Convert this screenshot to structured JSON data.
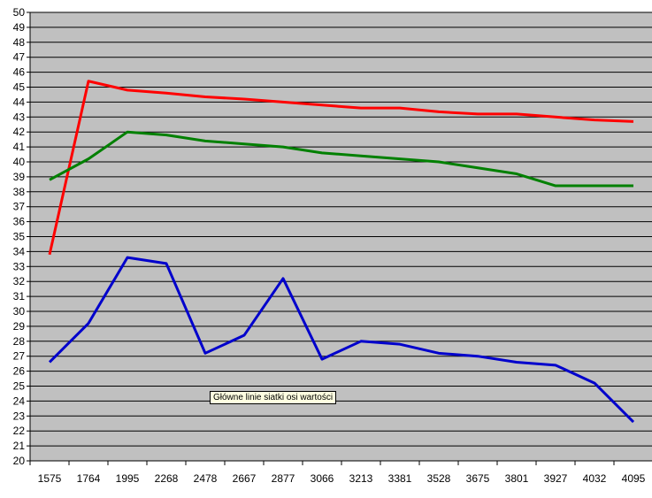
{
  "chart_data": {
    "type": "line",
    "categories": [
      "1575",
      "1764",
      "1995",
      "2268",
      "2478",
      "2667",
      "2877",
      "3066",
      "3213",
      "3381",
      "3528",
      "3675",
      "3801",
      "3927",
      "4032",
      "4095"
    ],
    "ylim": [
      20,
      50
    ],
    "ytick_step": 1,
    "grid": true,
    "plot_background": "#c0c0c0",
    "series": [
      {
        "color": "#ff0000",
        "values": [
          33.8,
          45.4,
          44.8,
          44.6,
          44.35,
          44.2,
          44.0,
          43.8,
          43.6,
          43.6,
          43.35,
          43.2,
          43.2,
          43.0,
          42.8,
          42.7
        ]
      },
      {
        "color": "#008000",
        "values": [
          38.8,
          40.2,
          42.0,
          41.8,
          41.4,
          41.2,
          41.0,
          40.6,
          40.4,
          40.2,
          40.0,
          39.6,
          39.2,
          38.4,
          38.4,
          38.4
        ]
      },
      {
        "color": "#0000cc",
        "values": [
          26.6,
          29.2,
          33.6,
          33.2,
          27.2,
          28.4,
          32.2,
          26.8,
          28.0,
          27.8,
          27.2,
          27.0,
          26.6,
          26.4,
          25.2,
          22.6
        ]
      }
    ],
    "tooltip": "Główne linie siatki osi wartości"
  }
}
